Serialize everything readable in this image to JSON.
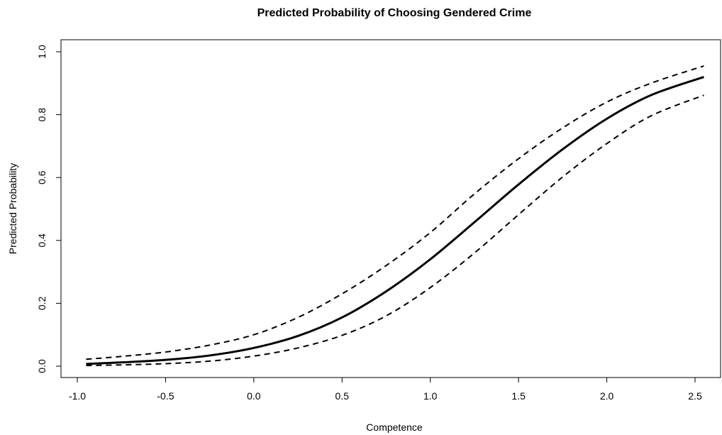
{
  "chart_data": {
    "type": "line",
    "title": "Predicted Probability of Choosing Gendered Crime",
    "xlabel": "Competence",
    "ylabel": "Predicted Probability",
    "xlim": [
      -1.0,
      2.5
    ],
    "ylim": [
      0.0,
      1.0
    ],
    "x_ticks": [
      "-1.0",
      "-0.5",
      "0.0",
      "0.5",
      "1.0",
      "1.5",
      "2.0",
      "2.5"
    ],
    "y_ticks": [
      "0.0",
      "0.2",
      "0.4",
      "0.6",
      "0.8",
      "1.0"
    ],
    "grid": false,
    "legend": "none",
    "series": [
      {
        "style": "solid",
        "x": [
          -0.95,
          -0.75,
          -0.5,
          -0.25,
          0.0,
          0.25,
          0.5,
          0.75,
          1.0,
          1.25,
          1.5,
          1.75,
          2.0,
          2.25,
          2.55
        ],
        "y": [
          0.007,
          0.012,
          0.02,
          0.034,
          0.058,
          0.096,
          0.155,
          0.238,
          0.34,
          0.458,
          0.578,
          0.69,
          0.787,
          0.862,
          0.92
        ]
      },
      {
        "style": "dashed",
        "x": [
          -0.95,
          -0.75,
          -0.5,
          -0.25,
          0.0,
          0.25,
          0.5,
          0.75,
          1.0,
          1.25,
          1.5,
          1.75,
          2.0,
          2.25,
          2.55
        ],
        "y": [
          0.022,
          0.031,
          0.045,
          0.067,
          0.1,
          0.155,
          0.23,
          0.32,
          0.425,
          0.548,
          0.66,
          0.758,
          0.84,
          0.9,
          0.955
        ]
      },
      {
        "style": "dashed",
        "x": [
          -0.95,
          -0.75,
          -0.5,
          -0.25,
          0.0,
          0.25,
          0.5,
          0.75,
          1.0,
          1.25,
          1.5,
          1.75,
          2.0,
          2.25,
          2.55
        ],
        "y": [
          0.002,
          0.004,
          0.008,
          0.016,
          0.032,
          0.058,
          0.098,
          0.16,
          0.25,
          0.36,
          0.482,
          0.602,
          0.708,
          0.796,
          0.862
        ]
      }
    ]
  }
}
